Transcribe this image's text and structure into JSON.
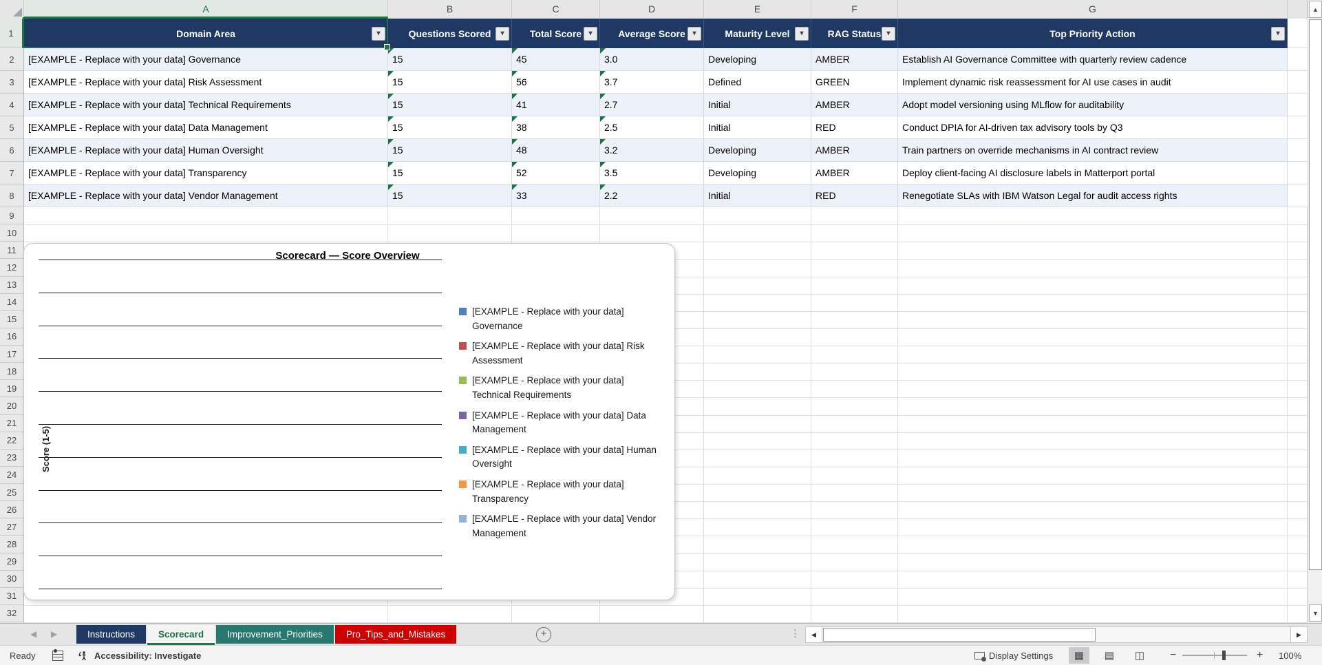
{
  "grid": {
    "column_letters": [
      "A",
      "B",
      "C",
      "D",
      "E",
      "F",
      "G"
    ],
    "active_column": "A",
    "active_row": "1",
    "row_count": 32
  },
  "table": {
    "headers": [
      "Domain Area",
      "Questions Scored",
      "Total Score",
      "Average Score",
      "Maturity Level",
      "RAG Status",
      "Top Priority Action"
    ],
    "flagged_columns": [
      "Questions Scored",
      "Total Score",
      "Average Score"
    ],
    "rows": [
      [
        "[EXAMPLE - Replace with your data] Governance",
        "15",
        "45",
        "3.0",
        "Developing",
        "AMBER",
        "Establish AI Governance Committee with quarterly review cadence"
      ],
      [
        "[EXAMPLE - Replace with your data] Risk Assessment",
        "15",
        "56",
        "3.7",
        "Defined",
        "GREEN",
        "Implement dynamic risk reassessment for AI use cases in audit"
      ],
      [
        "[EXAMPLE - Replace with your data] Technical Requirements",
        "15",
        "41",
        "2.7",
        "Initial",
        "AMBER",
        "Adopt model versioning using MLflow for auditability"
      ],
      [
        "[EXAMPLE - Replace with your data] Data Management",
        "15",
        "38",
        "2.5",
        "Initial",
        "RED",
        "Conduct DPIA for AI-driven tax advisory tools by Q3"
      ],
      [
        "[EXAMPLE - Replace with your data] Human Oversight",
        "15",
        "48",
        "3.2",
        "Developing",
        "AMBER",
        "Train partners on override mechanisms in AI contract review"
      ],
      [
        "[EXAMPLE - Replace with your data] Transparency",
        "15",
        "52",
        "3.5",
        "Developing",
        "AMBER",
        "Deploy client-facing AI disclosure labels in Matterport portal"
      ],
      [
        "[EXAMPLE - Replace with your data] Vendor Management",
        "15",
        "33",
        "2.2",
        "Initial",
        "RED",
        "Renegotiate SLAs with IBM Watson Legal for audit access rights"
      ]
    ]
  },
  "chart_data": {
    "type": "bar",
    "title": "Scorecard — Score Overview",
    "ylabel": "Score (1-5)",
    "ylim": [
      1,
      5
    ],
    "plot_area_empty": true,
    "gridlines": 11,
    "grid": true,
    "legend_position": "right",
    "series": [
      {
        "name": "[EXAMPLE - Replace with your data] Governance",
        "color": "#4F81BD",
        "values": []
      },
      {
        "name": "[EXAMPLE - Replace with your data] Risk Assessment",
        "color": "#C0504D",
        "values": []
      },
      {
        "name": "[EXAMPLE - Replace with your data] Technical Requirements",
        "color": "#9BBB59",
        "values": []
      },
      {
        "name": "[EXAMPLE - Replace with your data] Data Management",
        "color": "#8064A2",
        "values": []
      },
      {
        "name": "[EXAMPLE - Replace with your data] Human Oversight",
        "color": "#4BACC6",
        "values": []
      },
      {
        "name": "[EXAMPLE - Replace with your data] Transparency",
        "color": "#F79646",
        "values": []
      },
      {
        "name": "[EXAMPLE - Replace with your data] Vendor Management",
        "color": "#95B3D7",
        "values": []
      }
    ]
  },
  "sheet_tabs": {
    "items": [
      {
        "label": "Instructions",
        "color": "#1F3864",
        "active": false
      },
      {
        "label": "Scorecard",
        "color": "#217346",
        "active": true
      },
      {
        "label": "Improvement_Priorities",
        "color": "#27796F",
        "active": false
      },
      {
        "label": "Pro_Tips_and_Mistakes",
        "color": "#CC0000",
        "active": false
      }
    ],
    "add_sheet_label": "+"
  },
  "status_bar": {
    "mode": "Ready",
    "accessibility": "Accessibility: Investigate",
    "display_settings": "Display Settings",
    "zoom": "100%"
  },
  "colors": {
    "header_bg": "#1F3864",
    "band_row": "#EDF2F9",
    "table_border": "#CFD9E8",
    "accent_green": "#217346",
    "flag_green": "#1E7145"
  }
}
